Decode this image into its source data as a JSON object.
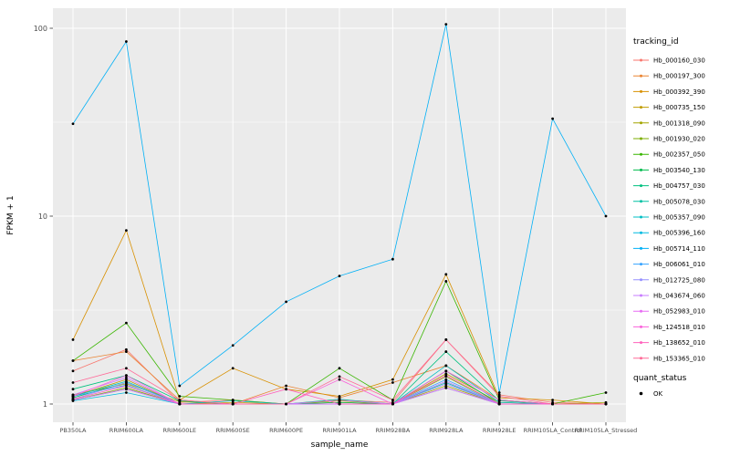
{
  "chart_data": {
    "type": "line",
    "title": "",
    "xlabel": "sample_name",
    "ylabel": "FPKM + 1",
    "y_scale": "log10",
    "ylim": [
      0.9,
      128
    ],
    "y_ticks": [
      1,
      10,
      100
    ],
    "y_tick_labels": [
      "1",
      "10",
      "100"
    ],
    "y_minor": [
      3.1623,
      31.623
    ],
    "grid": true,
    "legend_position": "right",
    "panel_bg": "#EBEBEB",
    "grid_color": "#FFFFFF",
    "point_color": "#000000",
    "legend_title": "tracking_id",
    "shape_legend": {
      "title": "quant_status",
      "items": [
        {
          "label": "OK",
          "color": "#000000",
          "shape": "point"
        }
      ]
    },
    "categories": [
      "PB350LA",
      "RRIM600LA",
      "RRIM600LE",
      "RRIM600SE",
      "RRIM600PE",
      "RRIM901LA",
      "RRIM928BA",
      "RRIM928LA",
      "RRIM928LE",
      "RRIM105LA_Control",
      "RRIM105LA_Stressed"
    ],
    "series": [
      {
        "name": "Hb_000160_030",
        "color": "#F8766D",
        "values": [
          1.5,
          1.95,
          1.02,
          1.05,
          1.0,
          1.05,
          1.02,
          2.2,
          1.12,
          1.02,
          1.0
        ]
      },
      {
        "name": "Hb_000197_300",
        "color": "#EA8331",
        "values": [
          1.7,
          1.9,
          1.05,
          1.0,
          1.25,
          1.08,
          1.3,
          1.6,
          1.05,
          1.0,
          1.0
        ]
      },
      {
        "name": "Hb_000392_390",
        "color": "#D89000",
        "values": [
          2.2,
          8.4,
          1.05,
          1.55,
          1.2,
          1.1,
          1.35,
          4.9,
          1.08,
          1.05,
          1.0
        ]
      },
      {
        "name": "Hb_000735_150",
        "color": "#C09B00",
        "values": [
          1.1,
          1.35,
          1.0,
          1.02,
          1.0,
          1.02,
          1.0,
          1.45,
          1.02,
          1.0,
          1.0
        ]
      },
      {
        "name": "Hb_001318_090",
        "color": "#A3A500",
        "values": [
          1.12,
          1.28,
          1.03,
          1.0,
          1.0,
          1.04,
          1.0,
          1.25,
          1.0,
          1.0,
          1.02
        ]
      },
      {
        "name": "Hb_001930_020",
        "color": "#7CAE00",
        "values": [
          1.05,
          1.22,
          1.0,
          1.0,
          1.0,
          1.0,
          1.0,
          1.4,
          1.0,
          1.0,
          1.0
        ]
      },
      {
        "name": "Hb_002357_050",
        "color": "#39B600",
        "values": [
          1.7,
          2.7,
          1.1,
          1.05,
          1.0,
          1.55,
          1.05,
          4.5,
          1.05,
          1.0,
          1.15
        ]
      },
      {
        "name": "Hb_003540_130",
        "color": "#00BB4E",
        "values": [
          1.08,
          1.3,
          1.0,
          1.0,
          1.0,
          1.02,
          1.0,
          1.5,
          1.0,
          1.0,
          1.0
        ]
      },
      {
        "name": "Hb_004757_030",
        "color": "#00C07F",
        "values": [
          1.2,
          1.42,
          1.04,
          1.0,
          1.0,
          1.06,
          1.0,
          1.9,
          1.04,
          1.0,
          1.0
        ]
      },
      {
        "name": "Hb_005078_030",
        "color": "#00C1A3",
        "values": [
          1.05,
          1.2,
          1.0,
          1.0,
          1.0,
          1.0,
          1.0,
          1.3,
          1.0,
          1.0,
          1.0
        ]
      },
      {
        "name": "Hb_005357_090",
        "color": "#00BFC4",
        "values": [
          1.1,
          1.32,
          1.0,
          1.04,
          1.0,
          1.0,
          1.0,
          1.6,
          1.02,
          1.0,
          1.0
        ]
      },
      {
        "name": "Hb_005396_160",
        "color": "#00BAE0",
        "values": [
          1.04,
          1.15,
          1.0,
          1.0,
          1.0,
          1.0,
          1.0,
          1.22,
          1.0,
          1.0,
          1.0
        ]
      },
      {
        "name": "Hb_005714_110",
        "color": "#00B0F6",
        "values": [
          31,
          85,
          1.25,
          2.05,
          3.5,
          4.8,
          5.9,
          105,
          1.15,
          33,
          10
        ]
      },
      {
        "name": "Hb_006061_010",
        "color": "#35A2FF",
        "values": [
          1.1,
          1.26,
          1.0,
          1.0,
          1.0,
          1.0,
          1.0,
          1.35,
          1.0,
          1.0,
          1.0
        ]
      },
      {
        "name": "Hb_012725_080",
        "color": "#9590FF",
        "values": [
          1.06,
          1.3,
          1.0,
          1.0,
          1.0,
          1.0,
          1.0,
          1.28,
          1.0,
          1.0,
          1.0
        ]
      },
      {
        "name": "Hb_043674_060",
        "color": "#C77CFF",
        "values": [
          1.12,
          1.38,
          1.0,
          1.0,
          1.0,
          1.05,
          1.0,
          1.32,
          1.0,
          1.0,
          1.0
        ]
      },
      {
        "name": "Hb_052983_010",
        "color": "#E76BF3",
        "values": [
          1.05,
          1.2,
          1.0,
          1.0,
          1.0,
          1.0,
          1.0,
          1.22,
          1.0,
          1.0,
          1.0
        ]
      },
      {
        "name": "Hb_124518_010",
        "color": "#FA62DB",
        "values": [
          1.1,
          1.42,
          1.0,
          1.0,
          1.0,
          1.35,
          1.0,
          1.5,
          1.05,
          1.0,
          1.0
        ]
      },
      {
        "name": "Hb_138652_010",
        "color": "#FF62BC",
        "values": [
          1.06,
          1.25,
          1.0,
          1.0,
          1.2,
          1.0,
          1.0,
          1.42,
          1.0,
          1.0,
          1.0
        ]
      },
      {
        "name": "Hb_153365_010",
        "color": "#FF6A98",
        "values": [
          1.3,
          1.55,
          1.05,
          1.0,
          1.0,
          1.4,
          1.05,
          2.2,
          1.1,
          1.0,
          1.0
        ]
      }
    ]
  }
}
